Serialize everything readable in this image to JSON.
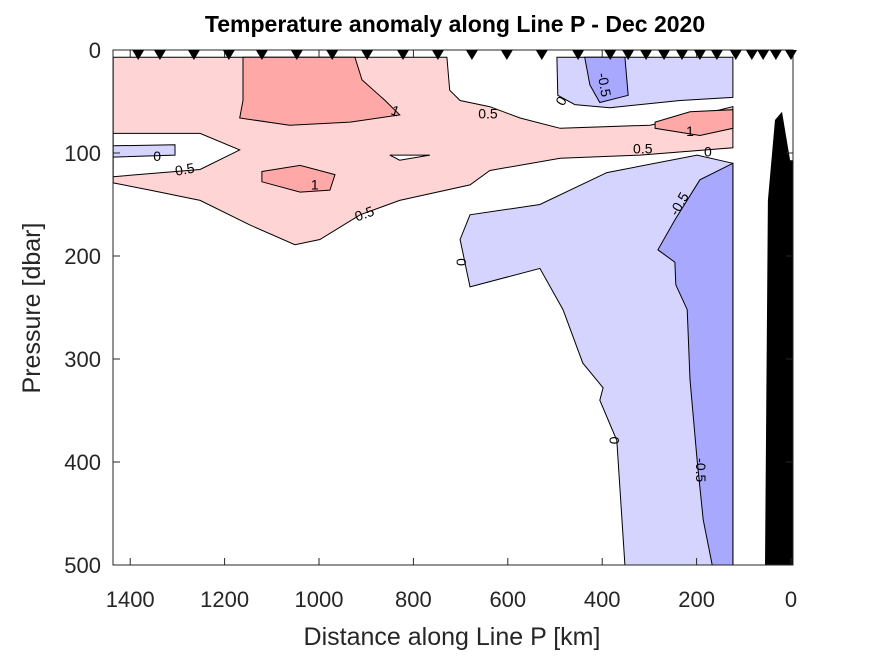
{
  "chart_data": {
    "type": "contour",
    "title": "Temperature anomaly along Line P - Dec 2020",
    "xlabel": "Distance along Line P [km]",
    "ylabel": "Pressure [dbar]",
    "xlim": [
      1436,
      0
    ],
    "ylim": [
      0,
      500
    ],
    "x_reversed": true,
    "y_reversed": true,
    "xticks": [
      1400,
      1200,
      1000,
      800,
      600,
      400,
      200,
      0
    ],
    "yticks": [
      0,
      100,
      200,
      300,
      400,
      500
    ],
    "contour_levels": [
      -0.5,
      0,
      0.5,
      1
    ],
    "colors": {
      "pos05": "#FFD4D4",
      "pos1": "#FFA8A8",
      "neg0": "#D4D4FF",
      "neg05": "#A8A8FF",
      "zero": "#FFFFFF",
      "bathymetry": "#000000"
    },
    "stations_km": [
      1383,
      1337,
      1265,
      1191,
      1121,
      1047,
      972,
      898,
      822,
      748,
      676,
      602,
      528,
      451,
      383,
      345,
      307,
      269,
      231,
      193,
      157,
      117,
      83,
      59,
      32,
      0
    ],
    "regions": [
      {
        "level": "pos05",
        "points": [
          [
            1436,
            7
          ],
          [
            729,
            7
          ],
          [
            723,
            39
          ],
          [
            701,
            49
          ],
          [
            638,
            55
          ],
          [
            574,
            66
          ],
          [
            489,
            76
          ],
          [
            299,
            73
          ],
          [
            193,
            63
          ],
          [
            123,
            55
          ],
          [
            123,
            95
          ],
          [
            320,
            102
          ],
          [
            489,
            105
          ],
          [
            638,
            117
          ],
          [
            680,
            131
          ],
          [
            829,
            146
          ],
          [
            913,
            160
          ],
          [
            998,
            184
          ],
          [
            1051,
            189
          ],
          [
            1146,
            170
          ],
          [
            1252,
            146
          ],
          [
            1358,
            136
          ],
          [
            1436,
            129
          ]
        ]
      },
      {
        "level": "zero",
        "points": [
          [
            1436,
            81
          ],
          [
            1252,
            81
          ],
          [
            1168,
            97
          ],
          [
            1252,
            116
          ],
          [
            1436,
            123
          ]
        ]
      },
      {
        "level": "neg0",
        "points": [
          [
            1436,
            93
          ],
          [
            1305,
            92
          ],
          [
            1305,
            102
          ],
          [
            1436,
            104
          ]
        ]
      },
      {
        "level": "zero",
        "points": [
          [
            850,
            102
          ],
          [
            765,
            102
          ],
          [
            829,
            107
          ]
        ]
      },
      {
        "level": "pos1",
        "points": [
          [
            1161,
            7
          ],
          [
            924,
            7
          ],
          [
            909,
            29
          ],
          [
            860,
            49
          ],
          [
            829,
            63
          ],
          [
            934,
            70
          ],
          [
            1062,
            73
          ],
          [
            1168,
            66
          ],
          [
            1161,
            49
          ]
        ]
      },
      {
        "level": "pos1",
        "points": [
          [
            1121,
            118
          ],
          [
            1040,
            112
          ],
          [
            966,
            121
          ],
          [
            977,
            136
          ],
          [
            1040,
            138
          ],
          [
            1121,
            128
          ]
        ]
      },
      {
        "level": "pos1",
        "points": [
          [
            288,
            70
          ],
          [
            214,
            60
          ],
          [
            123,
            58
          ],
          [
            123,
            76
          ],
          [
            193,
            83
          ],
          [
            288,
            76
          ]
        ]
      },
      {
        "level": "neg0",
        "points": [
          [
            496,
            7
          ],
          [
            123,
            7
          ],
          [
            123,
            46
          ],
          [
            235,
            49
          ],
          [
            384,
            56
          ],
          [
            458,
            53
          ],
          [
            494,
            44
          ]
        ]
      },
      {
        "level": "neg05",
        "points": [
          [
            437,
            7
          ],
          [
            352,
            7
          ],
          [
            345,
            44
          ],
          [
            405,
            51
          ],
          [
            426,
            34
          ]
        ]
      },
      {
        "level": "neg0",
        "points": [
          [
            123,
            110
          ],
          [
            199,
            102
          ],
          [
            390,
            119
          ],
          [
            532,
            150
          ],
          [
            680,
            160
          ],
          [
            701,
            184
          ],
          [
            680,
            230
          ],
          [
            532,
            212
          ],
          [
            483,
            252
          ],
          [
            441,
            304
          ],
          [
            398,
            328
          ],
          [
            405,
            340
          ],
          [
            369,
            379
          ],
          [
            352,
            500
          ],
          [
            123,
            500
          ]
        ]
      },
      {
        "level": "neg05",
        "points": [
          [
            123,
            110
          ],
          [
            193,
            126
          ],
          [
            246,
            165
          ],
          [
            282,
            194
          ],
          [
            246,
            206
          ],
          [
            244,
            228
          ],
          [
            220,
            252
          ],
          [
            214,
            320
          ],
          [
            199,
            398
          ],
          [
            186,
            456
          ],
          [
            167,
            500
          ],
          [
            123,
            500
          ]
        ]
      },
      {
        "level": "bathymetry",
        "points": [
          [
            55,
            500
          ],
          [
            49,
            146
          ],
          [
            34,
            68
          ],
          [
            19,
            60
          ],
          [
            2,
            107
          ],
          [
            -4,
            107
          ],
          [
            -4,
            500
          ]
        ]
      }
    ],
    "contour_labels": [
      {
        "text": "1",
        "x": 839,
        "y": 60,
        "angle": 20
      },
      {
        "text": "0.5",
        "x": 642,
        "y": 63,
        "angle": 0
      },
      {
        "text": "0",
        "x": 485,
        "y": 50,
        "angle": -60
      },
      {
        "text": "-0.5",
        "x": 398,
        "y": 34,
        "angle": 80
      },
      {
        "text": "1",
        "x": 214,
        "y": 80,
        "angle": 0
      },
      {
        "text": "0.5",
        "x": 314,
        "y": 97,
        "angle": 0
      },
      {
        "text": "0",
        "x": 176,
        "y": 100,
        "angle": 0
      },
      {
        "text": "0",
        "x": 1343,
        "y": 104,
        "angle": 0
      },
      {
        "text": "0.5",
        "x": 1284,
        "y": 117,
        "angle": -10
      },
      {
        "text": "1",
        "x": 1009,
        "y": 132,
        "angle": 0
      },
      {
        "text": "0.5",
        "x": 903,
        "y": 160,
        "angle": -20
      },
      {
        "text": "0",
        "x": 701,
        "y": 206,
        "angle": 90
      },
      {
        "text": "-0.5",
        "x": 235,
        "y": 150,
        "angle": -60
      },
      {
        "text": "0",
        "x": 377,
        "y": 379,
        "angle": 90
      },
      {
        "text": "-0.5",
        "x": 193,
        "y": 408,
        "angle": 90
      }
    ]
  }
}
